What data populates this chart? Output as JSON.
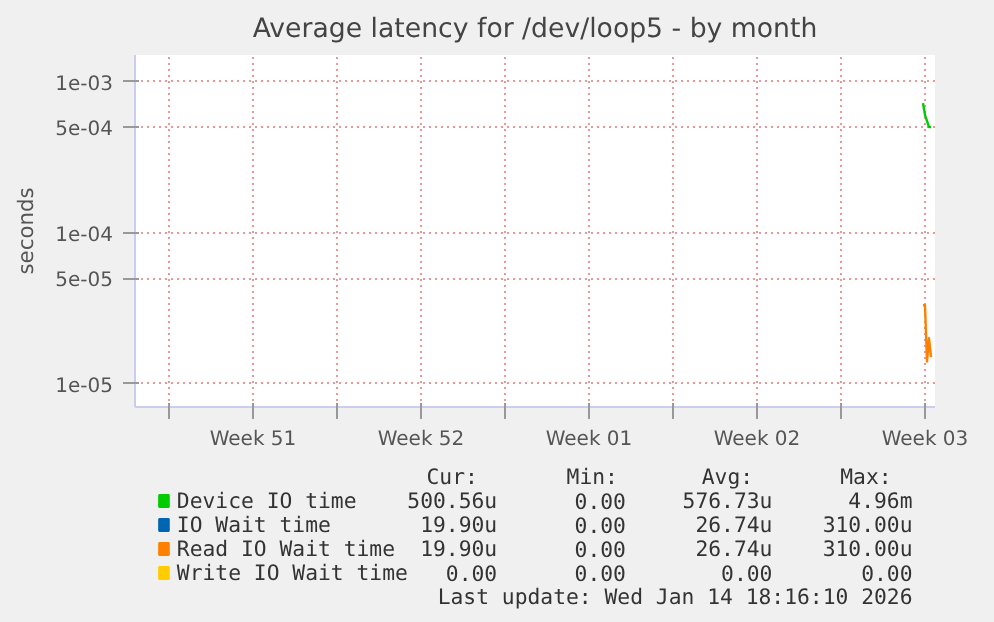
{
  "chart_data": {
    "type": "line",
    "title": "Average latency for /dev/loop5 - by month",
    "ylabel": "seconds",
    "x": [
      "2026-01-14T10:00",
      "2026-01-14T12:00",
      "2026-01-14T14:00",
      "2026-01-14T16:00",
      "2026-01-14T18:00"
    ],
    "series": [
      {
        "name": "Device IO time",
        "color": "#00cc00",
        "values": [
          0.00072,
          0.0006,
          0.00055,
          0.0005,
          0.0005
        ]
      },
      {
        "name": "IO Wait time",
        "color": "#0066b3",
        "values": [
          null,
          null,
          null,
          null,
          null
        ]
      },
      {
        "name": "Read IO Wait time",
        "color": "#ff8000",
        "values": [
          3.3e-05,
          3.3e-05,
          1.4e-05,
          2e-05,
          1.5e-05
        ]
      },
      {
        "name": "Write IO Wait time",
        "color": "#ffcc00",
        "values": [
          null,
          null,
          null,
          null,
          null
        ]
      }
    ],
    "log": "y",
    "ylim": [
      7e-06,
      0.0015
    ],
    "yticks": [
      {
        "value": 1e-05,
        "label": "1e-05"
      },
      {
        "value": 5e-05,
        "label": "5e-05"
      },
      {
        "value": 0.0001,
        "label": "1e-04"
      },
      {
        "value": 0.0005,
        "label": "5e-04"
      },
      {
        "value": 0.001,
        "label": "1e-03"
      }
    ],
    "xlim": [
      "2025-12-12T14:00",
      "2026-01-14T22:00"
    ],
    "xticks": [
      {
        "value": "2025-12-14",
        "label": null
      },
      {
        "value": "2025-12-17T12:00",
        "label": "Week 51"
      },
      {
        "value": "2025-12-21",
        "label": null
      },
      {
        "value": "2025-12-24T12:00",
        "label": "Week 52"
      },
      {
        "value": "2025-12-28",
        "label": null
      },
      {
        "value": "2025-12-31T12:00",
        "label": "Week 01"
      },
      {
        "value": "2026-01-04",
        "label": null
      },
      {
        "value": "2026-01-07T12:00",
        "label": "Week 02"
      },
      {
        "value": "2026-01-11",
        "label": null
      },
      {
        "value": "2026-01-14T12:00",
        "label": "Week 03"
      }
    ],
    "grid": true,
    "legend": "bottom",
    "marker": "none",
    "line_style": "solid",
    "annotations": [
      "Cur:",
      "Min:",
      "Avg:",
      "Max:",
      "500.56u",
      "0.00",
      "576.73u",
      "4.96m",
      "19.90u",
      "0.00",
      "26.74u",
      "310.00u",
      "19.90u",
      "0.00",
      "26.74u",
      "310.00u",
      "0.00",
      "0.00",
      "0.00",
      "0.00",
      "Last update: Wed Jan 14 18:16:10 2026"
    ]
  }
}
